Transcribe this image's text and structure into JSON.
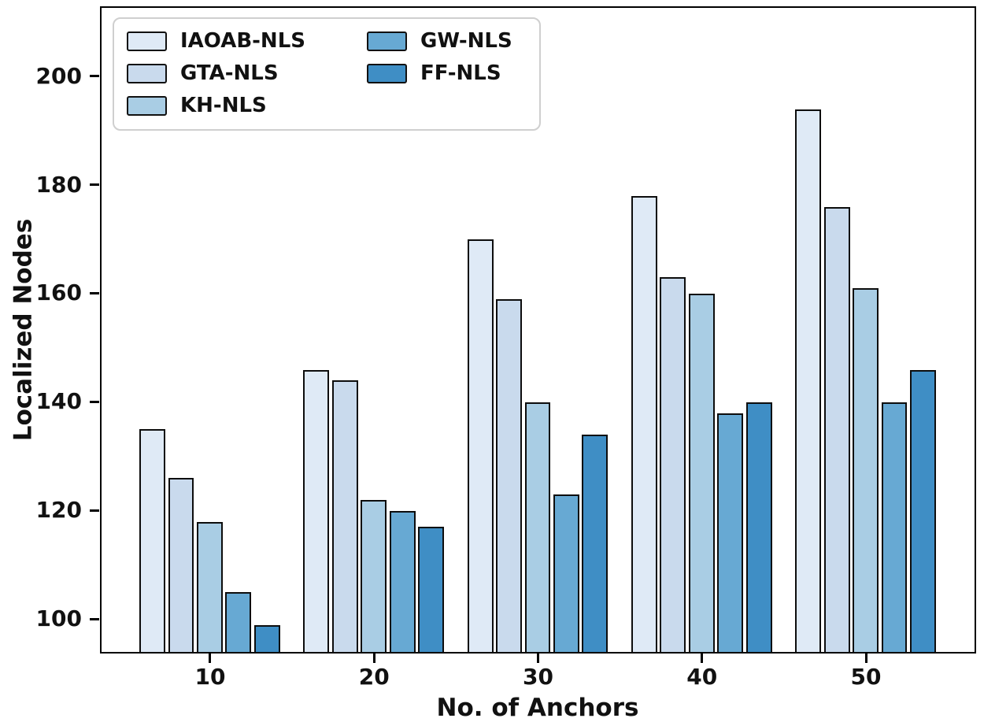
{
  "chart_data": {
    "type": "bar",
    "title": "",
    "xlabel": "No. of Anchors",
    "ylabel": "Localized Nodes",
    "categories": [
      "10",
      "20",
      "30",
      "40",
      "50"
    ],
    "series": [
      {
        "name": "IAOAB-NLS",
        "color": "#dfeaf6",
        "values": [
          135,
          146,
          170,
          178,
          194
        ]
      },
      {
        "name": "GTA-NLS",
        "color": "#c9daed",
        "values": [
          126,
          144,
          159,
          163,
          176
        ]
      },
      {
        "name": "KH-NLS",
        "color": "#a9cde4",
        "values": [
          118,
          122,
          140,
          160,
          161
        ]
      },
      {
        "name": "GW-NLS",
        "color": "#67a9d3",
        "values": [
          105,
          120,
          123,
          138,
          140
        ]
      },
      {
        "name": "FF-NLS",
        "color": "#3f8ec5",
        "values": [
          99,
          117,
          134,
          140,
          146
        ]
      }
    ],
    "yticks": [
      100,
      120,
      140,
      160,
      180,
      200
    ],
    "ylim": [
      94,
      212.5
    ],
    "grid": "off",
    "legend_position": "upper-left",
    "legend_columns": 2,
    "bar_edge_color": "#0d0d0d",
    "axis_color": "#000000"
  }
}
